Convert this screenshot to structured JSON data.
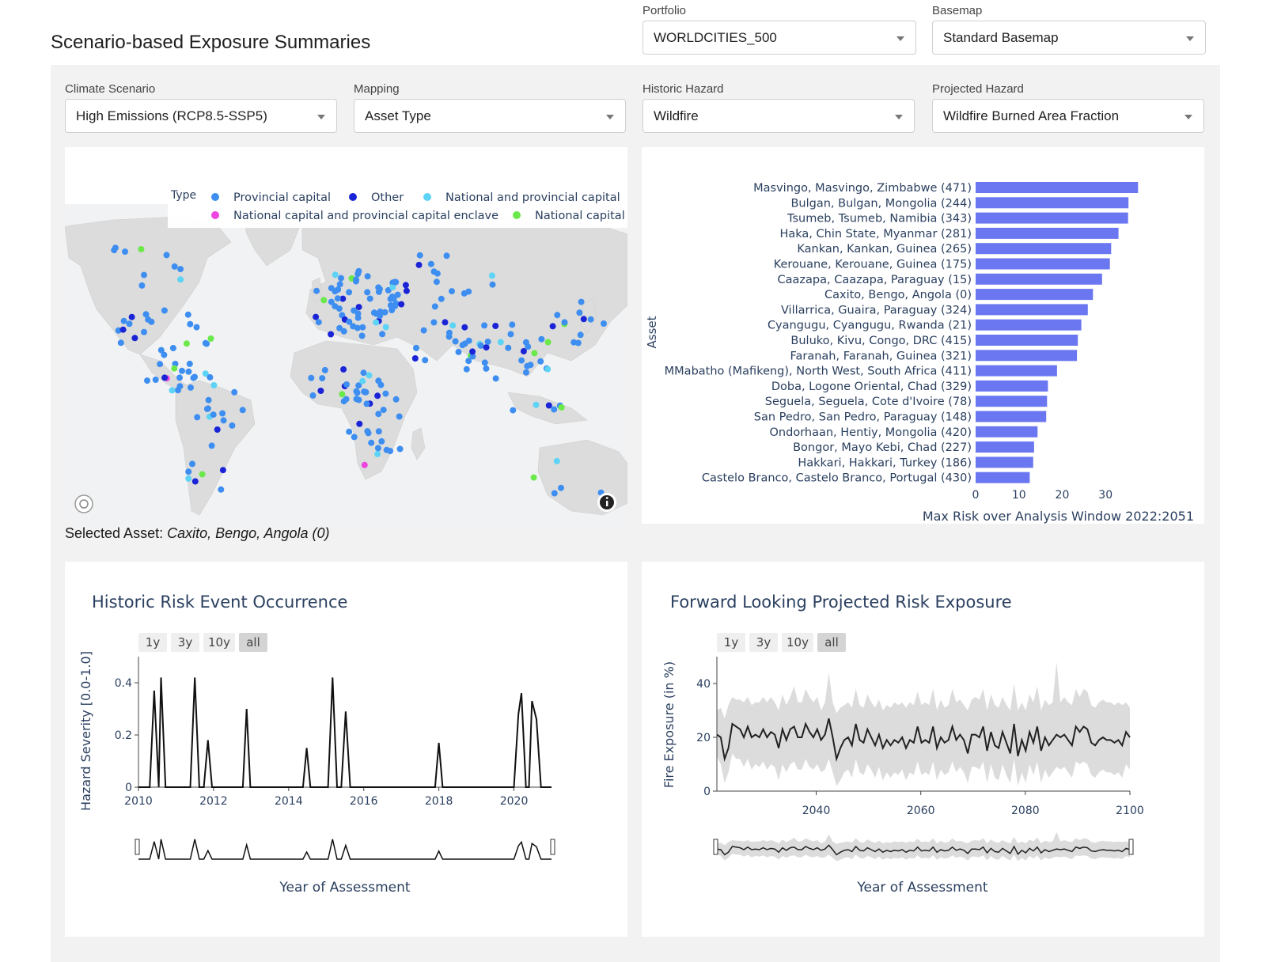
{
  "page": {
    "title": "Scenario-based Exposure Summaries"
  },
  "filters": {
    "portfolio": {
      "label": "Portfolio",
      "value": "WORLDCITIES_500"
    },
    "basemap": {
      "label": "Basemap",
      "value": "Standard Basemap"
    },
    "climate_scenario": {
      "label": "Climate Scenario",
      "value": "High Emissions (RCP8.5-SSP5)"
    },
    "mapping": {
      "label": "Mapping",
      "value": "Asset Type"
    },
    "historic_hazard": {
      "label": "Historic Hazard",
      "value": "Wildfire"
    },
    "projected_hazard": {
      "label": "Projected Hazard",
      "value": "Wildfire Burned Area Fraction"
    }
  },
  "map": {
    "legend_title": "Type",
    "legend": [
      {
        "label": "Provincial capital",
        "color": "#3d8ef0"
      },
      {
        "label": "Other",
        "color": "#1a24d6"
      },
      {
        "label": "National and provincial capital",
        "color": "#5dd3f5"
      },
      {
        "label": "National capital and provincial capital enclave",
        "color": "#ee44e0"
      },
      {
        "label": "National capital",
        "color": "#6be94a"
      }
    ],
    "icons": [
      "mapbox-logo-icon",
      "info-icon"
    ]
  },
  "selected_asset": {
    "prefix": "Selected Asset:",
    "value": "Caxito, Bengo, Angola (0)"
  },
  "bar_chart": {
    "type": "bar",
    "orientation": "horizontal",
    "ylabel": "Asset",
    "xlabel": "Max Risk over Analysis Window 2022:2051",
    "xticks": [
      "0",
      "10",
      "20",
      "30"
    ],
    "xlim": [
      0,
      38
    ],
    "color": "#6b77f0",
    "categories": [
      "Masvingo, Masvingo, Zimbabwe (471)",
      "Bulgan, Bulgan, Mongolia (244)",
      "Tsumeb, Tsumeb, Namibia (343)",
      "Haka, Chin State, Myanmar (281)",
      "Kankan, Kankan, Guinea (265)",
      "Kerouane, Kerouane, Guinea (175)",
      "Caazapa, Caazapa, Paraguay (15)",
      "Caxito, Bengo, Angola (0)",
      "Villarrica, Guaira, Paraguay (324)",
      "Cyangugu, Cyangugu, Rwanda (21)",
      "Buluko, Kivu, Congo, DRC (415)",
      "Faranah, Faranah, Guinea (321)",
      "MMabatho (Mafikeng), North West, South Africa (411)",
      "Doba, Logone Oriental, Chad (329)",
      "Seguela, Seguela, Cote d'Ivoire (78)",
      "San Pedro, San Pedro, Paraguay (148)",
      "Ondorhaan, Hentiy, Mongolia (420)",
      "Bongor, Mayo Kebi, Chad (227)",
      "Hakkari, Hakkari, Turkey (186)",
      "Castelo Branco, Castelo Branco, Portugal (430)"
    ],
    "values": [
      37.5,
      35.3,
      35.2,
      33.0,
      31.3,
      31.0,
      29.2,
      27.1,
      25.9,
      24.4,
      23.6,
      23.4,
      18.8,
      16.7,
      16.5,
      16.3,
      14.3,
      13.5,
      13.3,
      12.5
    ]
  },
  "historic_chart": {
    "type": "line",
    "title": "Historic Risk Event Occurrence",
    "ylabel": "Hazard Severity [0.0-1.0]",
    "xlabel": "Year of Assessment",
    "range_buttons": [
      "1y",
      "3y",
      "10y",
      "all"
    ],
    "active_button": "all",
    "xticks": [
      "2010",
      "2012",
      "2014",
      "2016",
      "2018",
      "2020"
    ],
    "yticks": [
      "0",
      "0.2",
      "0.4"
    ],
    "xlim": [
      2010,
      2021
    ],
    "ylim": [
      0,
      0.5
    ],
    "x": [
      2010.0,
      2010.3,
      2010.42,
      2010.54,
      2010.6,
      2010.72,
      2011.38,
      2011.5,
      2011.62,
      2011.74,
      2011.85,
      2011.96,
      2012.78,
      2012.88,
      2012.98,
      2014.38,
      2014.48,
      2014.58,
      2015.05,
      2015.17,
      2015.29,
      2015.4,
      2015.52,
      2015.64,
      2017.9,
      2018.0,
      2018.1,
      2020.0,
      2020.12,
      2020.2,
      2020.32,
      2020.4,
      2020.48,
      2020.6,
      2020.72,
      2021.0
    ],
    "y": [
      0,
      0,
      0.37,
      0,
      0.42,
      0,
      0,
      0.42,
      0,
      0,
      0.18,
      0,
      0,
      0.3,
      0,
      0,
      0.15,
      0,
      0,
      0.42,
      0,
      0,
      0.29,
      0,
      0,
      0.17,
      0,
      0,
      0.28,
      0.36,
      0,
      0,
      0.33,
      0.26,
      0,
      0
    ]
  },
  "projected_chart": {
    "type": "line",
    "title": "Forward Looking Projected Risk Exposure",
    "ylabel": "Fire Exposure (in %)",
    "xlabel": "Year of Assessment",
    "range_buttons": [
      "1y",
      "3y",
      "10y",
      "all"
    ],
    "active_button": "all",
    "xticks": [
      "2040",
      "2060",
      "2080",
      "2100"
    ],
    "yticks": [
      "0",
      "20",
      "40"
    ],
    "xlim": [
      2021,
      2100
    ],
    "ylim": [
      0,
      50
    ],
    "x_start": 2021,
    "mean": [
      21,
      20,
      12,
      16,
      25,
      24,
      23,
      20,
      24,
      20,
      21,
      20,
      23,
      20,
      22,
      21,
      16,
      23,
      19,
      23,
      24,
      20,
      20,
      25,
      22,
      20,
      23,
      19,
      21,
      27,
      20,
      12,
      16,
      19,
      20,
      17,
      25,
      19,
      18,
      23,
      20,
      17,
      21,
      16,
      19,
      17,
      19,
      18,
      20,
      16,
      19,
      18,
      24,
      18,
      19,
      18,
      24,
      16,
      20,
      18,
      19,
      24,
      19,
      21,
      19,
      14,
      21,
      21,
      20,
      24,
      15,
      22,
      17,
      16,
      22,
      18,
      14,
      25,
      13,
      19,
      15,
      22,
      18,
      24,
      15,
      20,
      17,
      19,
      21,
      20,
      21,
      19,
      17,
      24,
      22,
      24,
      23,
      18,
      17,
      19,
      20,
      19,
      19,
      18,
      19,
      17,
      22,
      20
    ],
    "upper": [
      30,
      31,
      27,
      32,
      35,
      34,
      34,
      33,
      35,
      32,
      33,
      33,
      35,
      33,
      35,
      33,
      30,
      36,
      32,
      35,
      39,
      33,
      33,
      38,
      35,
      33,
      35,
      30,
      33,
      44,
      33,
      29,
      31,
      32,
      33,
      31,
      38,
      32,
      31,
      36,
      33,
      31,
      34,
      30,
      32,
      31,
      33,
      32,
      33,
      31,
      33,
      32,
      37,
      32,
      33,
      32,
      38,
      30,
      34,
      31,
      32,
      38,
      33,
      34,
      32,
      30,
      34,
      35,
      34,
      38,
      30,
      36,
      32,
      31,
      35,
      32,
      30,
      40,
      30,
      33,
      30,
      36,
      33,
      39,
      30,
      34,
      32,
      33,
      48,
      33,
      35,
      33,
      32,
      38,
      35,
      38,
      37,
      32,
      31,
      33,
      34,
      33,
      33,
      32,
      33,
      32,
      33,
      31
    ],
    "lower": [
      13,
      10,
      3,
      7,
      14,
      12,
      12,
      9,
      12,
      8,
      10,
      9,
      11,
      8,
      10,
      9,
      4,
      10,
      7,
      10,
      11,
      8,
      8,
      12,
      9,
      8,
      10,
      7,
      8,
      12,
      7,
      2,
      4,
      7,
      8,
      5,
      12,
      7,
      6,
      10,
      8,
      5,
      9,
      4,
      7,
      5,
      7,
      6,
      8,
      4,
      7,
      6,
      11,
      6,
      7,
      6,
      11,
      4,
      8,
      6,
      7,
      11,
      7,
      9,
      7,
      3,
      9,
      9,
      8,
      11,
      3,
      10,
      5,
      4,
      10,
      6,
      3,
      12,
      2,
      7,
      3,
      10,
      6,
      11,
      3,
      8,
      5,
      7,
      9,
      8,
      9,
      7,
      5,
      11,
      10,
      11,
      10,
      6,
      5,
      7,
      8,
      7,
      7,
      6,
      7,
      5,
      10,
      8
    ]
  }
}
